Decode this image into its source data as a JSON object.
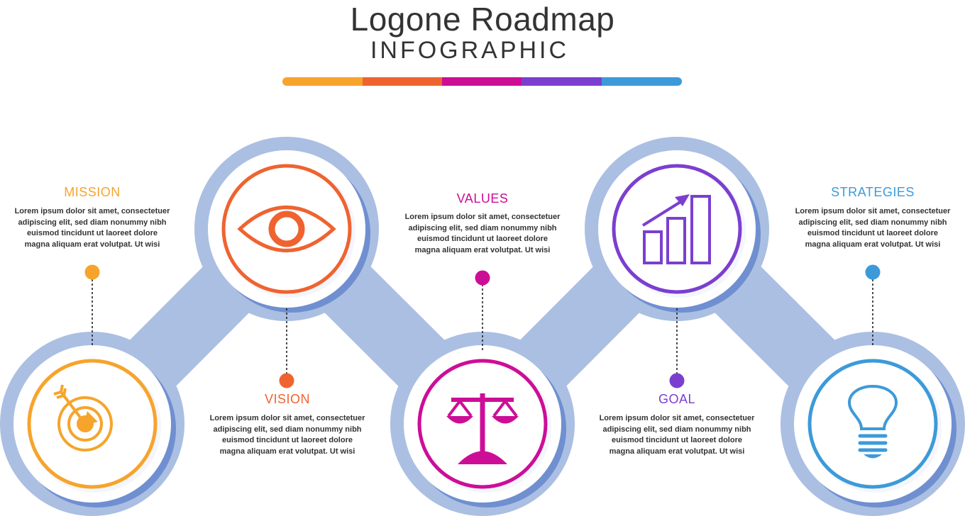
{
  "header": {
    "title": "Logone Roadmap",
    "subtitle": "INFOGRAPHIC",
    "bar_colors": [
      "#f6a42c",
      "#ef6330",
      "#cc0e97",
      "#7b3fd0",
      "#3d9ad9"
    ]
  },
  "colors": {
    "track": "#aabfe2",
    "shadow": "#6f8fd0",
    "inner": "#f4f6fc"
  },
  "steps": [
    {
      "label": "MISSION",
      "color": "#f6a42c",
      "icon": "target-icon",
      "text": [
        "Lorem ipsum dolor sit amet, consectetuer",
        "adipiscing elit, sed diam nonummy nibh",
        "euismod tincidunt ut laoreet dolore",
        "magna aliquam erat volutpat. Ut wisi"
      ]
    },
    {
      "label": "VISION",
      "color": "#ef6330",
      "icon": "eye-icon",
      "text": [
        "Lorem ipsum dolor sit amet, consectetuer",
        "adipiscing elit, sed diam nonummy nibh",
        "euismod tincidunt ut laoreet dolore",
        "magna aliquam erat volutpat. Ut wisi"
      ]
    },
    {
      "label": "VALUES",
      "color": "#cc0e97",
      "icon": "scales-icon",
      "text": [
        "Lorem ipsum dolor sit amet, consectetuer",
        "adipiscing elit, sed diam nonummy nibh",
        "euismod tincidunt ut laoreet dolore",
        "magna aliquam erat volutpat. Ut wisi"
      ]
    },
    {
      "label": "GOAL",
      "color": "#7b3fd0",
      "icon": "growth-chart-icon",
      "text": [
        "Lorem ipsum dolor sit amet, consectetuer",
        "adipiscing elit, sed diam nonummy nibh",
        "euismod tincidunt ut laoreet dolore",
        "magna aliquam erat volutpat. Ut wisi"
      ]
    },
    {
      "label": "STRATEGIES",
      "color": "#3d9ad9",
      "icon": "lightbulb-icon",
      "text": [
        "Lorem ipsum dolor sit amet, consectetuer",
        "adipiscing elit, sed diam nonummy nibh",
        "euismod tincidunt ut laoreet dolore",
        "magna aliquam erat volutpat. Ut wisi"
      ]
    }
  ]
}
